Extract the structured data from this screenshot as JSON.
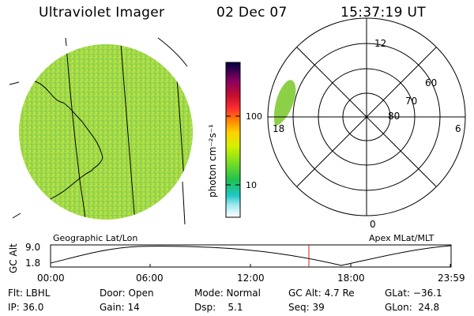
{
  "header": {
    "title": "Ultraviolet Imager",
    "date": "02 Dec 07",
    "time": "15:37:19 UT"
  },
  "image_panel": {
    "caption": "Geographic Lat/Lon"
  },
  "colorbar": {
    "unit": "photon cm⁻²s⁻¹",
    "ticks": [
      "100",
      "10"
    ],
    "colors": [
      "#000040",
      "#400060",
      "#8a0060",
      "#c8102e",
      "#ff3030",
      "#ff8a00",
      "#ffd000",
      "#d6f000",
      "#80e020",
      "#20c050",
      "#20c8c8",
      "#a0e8f0",
      "#ffffff"
    ]
  },
  "polar_panel": {
    "caption": "Apex MLat/MLT",
    "lat_labels": [
      "60",
      "70",
      "80"
    ],
    "mlt_labels": [
      "12",
      "18",
      "6",
      "0"
    ]
  },
  "altitude_plot": {
    "ylabel": "GC Alt",
    "ymax_label": "9.0",
    "ymin_label": "1.8",
    "x_ticks": [
      "00:00",
      "06:00",
      "12:00",
      "18:00",
      "23:59"
    ],
    "marker_color": "#cc2222"
  },
  "info": {
    "flt": "Flt: LBHL",
    "door": "Door: Open",
    "mode": "Mode: Normal",
    "gcalt": "GC Alt: 4.7 Re",
    "glat": "GLat: −36.1",
    "ip": "IP: 36.0",
    "gain": "Gain: 14",
    "dsp": "Dsp:    5.1",
    "seq": "Seq: 39",
    "glon": "GLon:  24.8"
  }
}
